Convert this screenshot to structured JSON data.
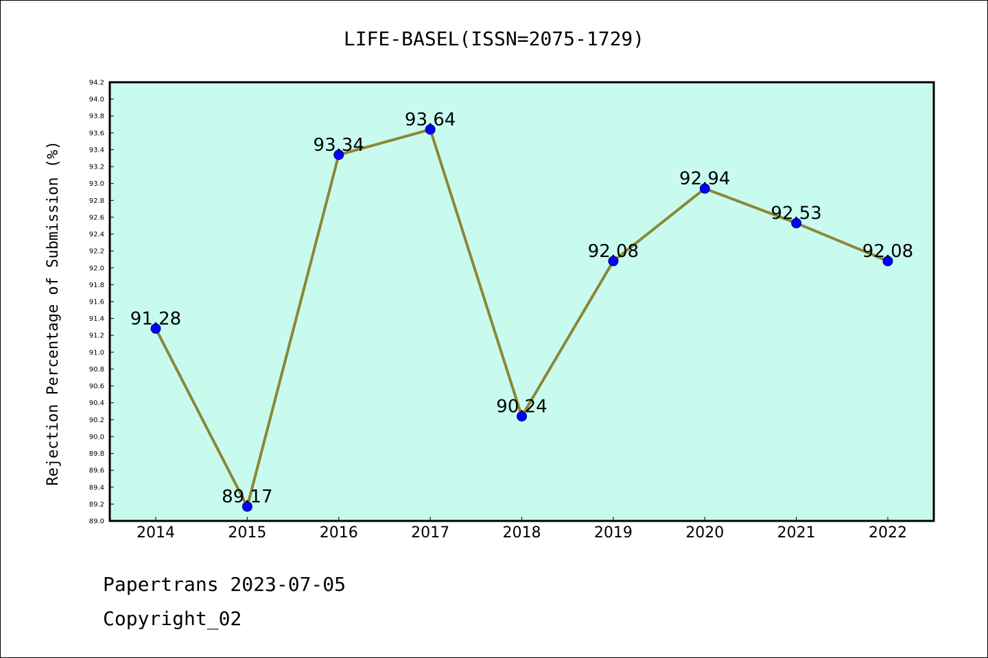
{
  "footer": {
    "line1": "Papertrans 2023-07-05",
    "line2": "Copyright_02"
  },
  "colors": {
    "plot_background": "#c8fbee",
    "line": "#8c8636",
    "marker": "#0000ff"
  },
  "chart_data": {
    "type": "line",
    "title": "LIFE-BASEL(ISSN=2075-1729)",
    "xlabel": "",
    "ylabel": "Rejection Percentage of Submission (%)",
    "ylim": [
      89.0,
      94.2
    ],
    "ytick_step": 0.2,
    "grid": false,
    "categories": [
      "2014",
      "2015",
      "2016",
      "2017",
      "2018",
      "2019",
      "2020",
      "2021",
      "2022"
    ],
    "series": [
      {
        "values": [
          91.28,
          89.17,
          93.34,
          93.64,
          90.24,
          92.08,
          92.94,
          92.53,
          92.08
        ],
        "labels": [
          "91.28",
          "89.17",
          "93.34",
          "93.64",
          "90.24",
          "92.08",
          "92.94",
          "92.53",
          "92.08"
        ]
      }
    ]
  }
}
